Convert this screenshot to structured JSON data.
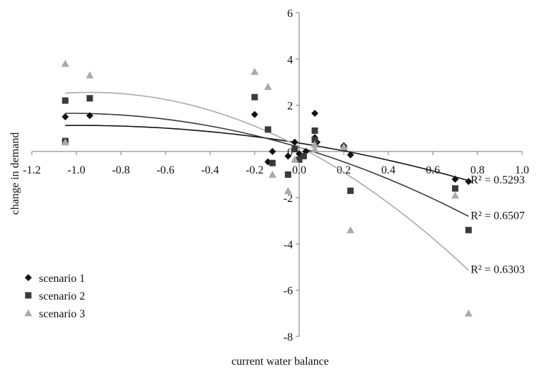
{
  "chart_data": {
    "type": "scatter",
    "xlabel": "current water balance",
    "ylabel": "change in demand",
    "xlim": [
      -1.2,
      1.0
    ],
    "ylim": [
      -8,
      6
    ],
    "x_ticks": [
      -1.2,
      -1.0,
      -0.8,
      -0.6,
      -0.4,
      -0.2,
      0.0,
      0.2,
      0.4,
      0.6,
      0.8,
      1.0
    ],
    "x_tick_labels": [
      "-1.2",
      "-1.0",
      "-0.8",
      "-0.6",
      "-0.4",
      "-0.2",
      "0.0",
      "0.2",
      "0.4",
      "0.6",
      "0.8",
      "1.0"
    ],
    "y_ticks": [
      6,
      4,
      2,
      0,
      -2,
      -4,
      -6,
      -8
    ],
    "y_tick_labels": [
      "6",
      "4",
      "2",
      "0",
      "-2",
      "-4",
      "-6",
      "-8"
    ],
    "legend_position": "bottom-left",
    "series": [
      {
        "name": "scenario 1",
        "marker": "diamond",
        "color": "#111111",
        "points": [
          {
            "x": -1.05,
            "y": 1.5
          },
          {
            "x": -1.05,
            "y": 0.45
          },
          {
            "x": -0.94,
            "y": 1.55
          },
          {
            "x": -0.2,
            "y": 1.6
          },
          {
            "x": -0.14,
            "y": -0.45
          },
          {
            "x": -0.12,
            "y": 0.0
          },
          {
            "x": -0.05,
            "y": -0.2
          },
          {
            "x": -0.02,
            "y": 0.4
          },
          {
            "x": 0.0,
            "y": -0.1
          },
          {
            "x": 0.03,
            "y": 0.0
          },
          {
            "x": 0.07,
            "y": 1.65
          },
          {
            "x": 0.07,
            "y": 0.6
          },
          {
            "x": 0.08,
            "y": 0.4
          },
          {
            "x": 0.2,
            "y": 0.25
          },
          {
            "x": 0.23,
            "y": -0.15
          },
          {
            "x": 0.7,
            "y": -1.2
          },
          {
            "x": 0.76,
            "y": -1.3
          }
        ]
      },
      {
        "name": "scenario 2",
        "marker": "square",
        "color": "#3a3a3a",
        "points": [
          {
            "x": -1.05,
            "y": 2.2
          },
          {
            "x": -1.05,
            "y": 0.45
          },
          {
            "x": -0.94,
            "y": 2.3
          },
          {
            "x": -0.2,
            "y": 2.35
          },
          {
            "x": -0.14,
            "y": 0.95
          },
          {
            "x": -0.12,
            "y": -0.5
          },
          {
            "x": -0.05,
            "y": -1.0
          },
          {
            "x": -0.02,
            "y": 0.1
          },
          {
            "x": 0.0,
            "y": -0.35
          },
          {
            "x": 0.02,
            "y": -0.2
          },
          {
            "x": 0.07,
            "y": 0.9
          },
          {
            "x": 0.07,
            "y": 0.5
          },
          {
            "x": 0.2,
            "y": 0.15
          },
          {
            "x": 0.23,
            "y": -1.7
          },
          {
            "x": 0.7,
            "y": -1.6
          },
          {
            "x": 0.76,
            "y": -3.4
          }
        ]
      },
      {
        "name": "scenario 3",
        "marker": "triangle",
        "color": "#aaaaaa",
        "points": [
          {
            "x": -1.05,
            "y": 3.8
          },
          {
            "x": -1.05,
            "y": 0.4
          },
          {
            "x": -0.94,
            "y": 3.3
          },
          {
            "x": -0.2,
            "y": 3.45
          },
          {
            "x": -0.14,
            "y": 2.8
          },
          {
            "x": -0.12,
            "y": -1.0
          },
          {
            "x": -0.05,
            "y": -1.7
          },
          {
            "x": -0.02,
            "y": -0.35
          },
          {
            "x": 0.07,
            "y": 0.3
          },
          {
            "x": 0.07,
            "y": 0.1
          },
          {
            "x": 0.2,
            "y": 0.2
          },
          {
            "x": 0.23,
            "y": -3.4
          },
          {
            "x": 0.7,
            "y": -1.9
          },
          {
            "x": 0.76,
            "y": -7.0
          }
        ]
      }
    ],
    "trendlines": [
      {
        "series": "scenario 1",
        "type": "polynomial-2",
        "color": "#111111",
        "x_range": [
          -1.05,
          0.76
        ],
        "r2_label": "R² = 0.5293"
      },
      {
        "series": "scenario 2",
        "type": "polynomial-2",
        "color": "#3a3a3a",
        "x_range": [
          -1.05,
          0.76
        ],
        "r2_label": "R² = 0.6507"
      },
      {
        "series": "scenario 3",
        "type": "polynomial-2",
        "color": "#aaaaaa",
        "x_range": [
          -1.05,
          0.76
        ],
        "r2_label": "R² = 0.6303"
      }
    ]
  }
}
